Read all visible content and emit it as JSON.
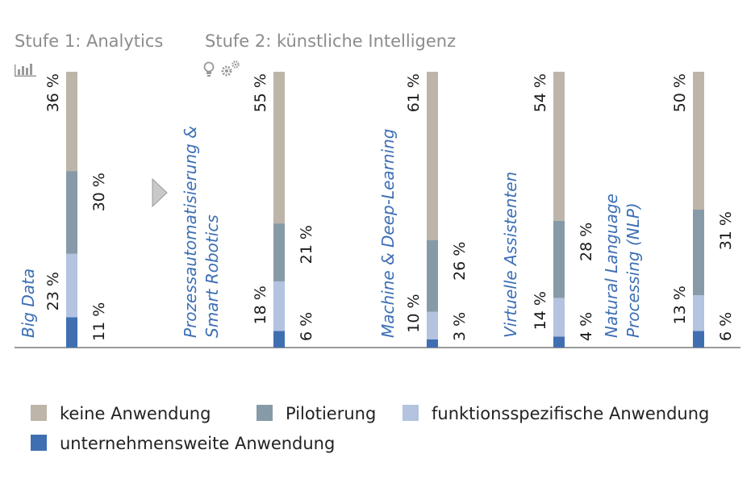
{
  "chart_data": {
    "type": "bar",
    "stacked": true,
    "stages": [
      {
        "title": "Stufe 1: Analytics",
        "icon": "bar-chart-icon"
      },
      {
        "title": "Stufe 2: künstliche Intelligenz",
        "icon": "lightbulb-gears-icon"
      }
    ],
    "categories": [
      "Big Data",
      "Prozessautomatisierung & Smart Robotics",
      "Machine & Deep-Learning",
      "Virtuelle Assistenten",
      "Natural Language Processing (NLP)"
    ],
    "series": [
      {
        "name": "unternehmensweite Anwendung",
        "color": "#3f6fb1",
        "values": [
          11,
          6,
          3,
          4,
          6
        ],
        "labels": [
          "11 %",
          "6 %",
          "3 %",
          "4 %",
          "6 %"
        ]
      },
      {
        "name": "funktionsspezifische Anwendung",
        "color": "#b3c3e0",
        "values": [
          23,
          18,
          10,
          14,
          13
        ],
        "labels": [
          "23 %",
          "18 %",
          "10 %",
          "14 %",
          "13 %"
        ]
      },
      {
        "name": "Pilotierung",
        "color": "#879aa7",
        "values": [
          30,
          21,
          26,
          28,
          31
        ],
        "labels": [
          "30 %",
          "21 %",
          "26 %",
          "28 %",
          "31 %"
        ]
      },
      {
        "name": "keine Anwendung",
        "color": "#bdb5a9",
        "values": [
          36,
          55,
          61,
          54,
          50
        ],
        "labels": [
          "36 %",
          "55 %",
          "61 %",
          "54 %",
          "50 %"
        ]
      }
    ],
    "legend_order": [
      "keine Anwendung",
      "Pilotierung",
      "funktionsspezifische Anwendung",
      "unternehmensweite Anwendung"
    ],
    "legend_position": "bottom",
    "ylim": [
      0,
      100
    ],
    "grid": false,
    "baseline_color": "#9a9a9a",
    "arrow_color": "#c8c8c8"
  }
}
